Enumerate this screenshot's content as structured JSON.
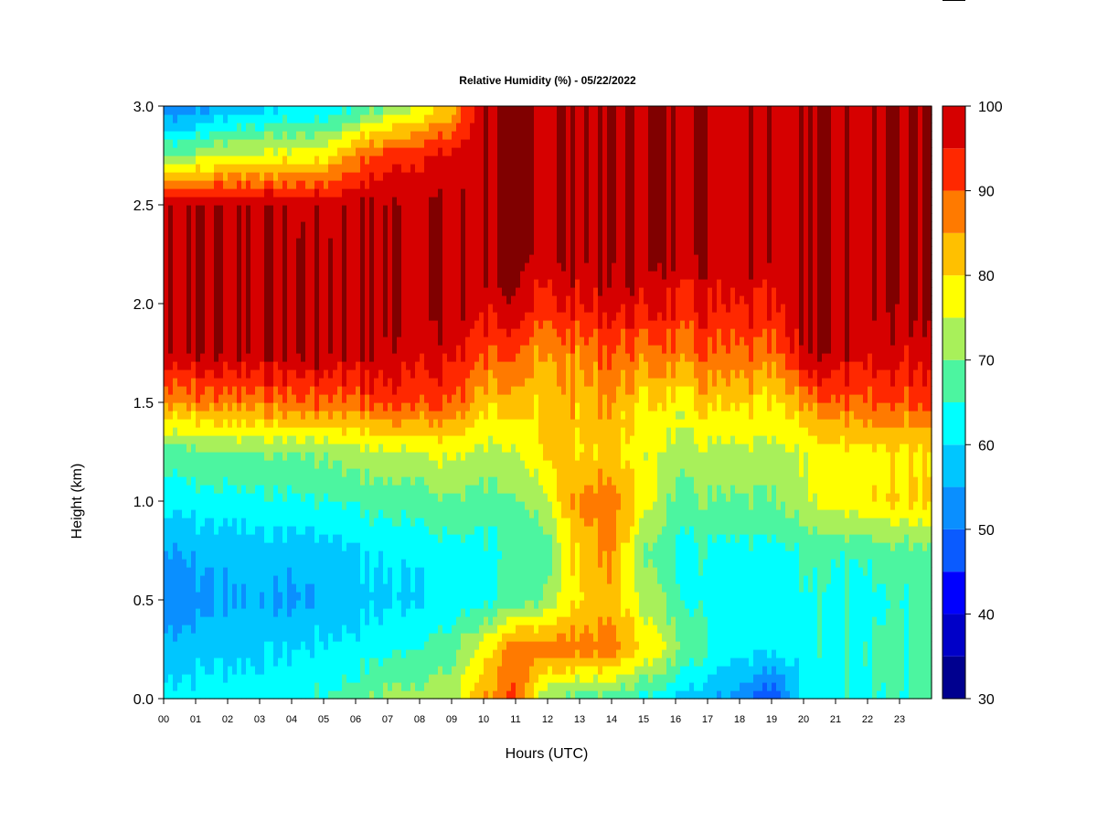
{
  "chart_data": {
    "type": "heatmap",
    "title": "Relative Humidity (%) - 05/22/2022",
    "xlabel": "Hours (UTC)",
    "ylabel": "Height (km)",
    "xlim": [
      0,
      24
    ],
    "ylim": [
      0.0,
      3.0
    ],
    "x_ticks": [
      "00",
      "01",
      "02",
      "03",
      "04",
      "05",
      "06",
      "07",
      "08",
      "09",
      "10",
      "11",
      "12",
      "13",
      "14",
      "15",
      "16",
      "17",
      "18",
      "19",
      "20",
      "21",
      "22",
      "23"
    ],
    "y_ticks": [
      "0.0",
      "0.5",
      "1.0",
      "1.5",
      "2.0",
      "2.5",
      "3.0"
    ],
    "colorbar": {
      "bounds": [
        30,
        35,
        40,
        45,
        50,
        55,
        60,
        65,
        70,
        75,
        80,
        85,
        90,
        95,
        100
      ],
      "colors": [
        "#00008f",
        "#0000c8",
        "#0000ff",
        "#0a5bff",
        "#0a8fff",
        "#00c6ff",
        "#00ffff",
        "#4cf5a0",
        "#a8f05a",
        "#ffff00",
        "#ffc000",
        "#ff7a00",
        "#ff2800",
        "#d60000",
        "#800000"
      ],
      "labels": [
        "30",
        "40",
        "50",
        "60",
        "70",
        "80",
        "90",
        "100"
      ]
    },
    "hours": [
      0,
      1,
      2,
      3,
      4,
      5,
      6,
      7,
      8,
      9,
      10,
      11,
      12,
      13,
      14,
      15,
      16,
      17,
      18,
      19,
      20,
      21,
      22,
      23,
      24
    ],
    "heights_km": [
      0.0,
      0.25,
      0.5,
      0.75,
      1.0,
      1.25,
      1.5,
      1.75,
      2.0,
      2.25,
      2.5,
      2.75,
      3.0
    ],
    "rh_profiles": [
      [
        62,
        57,
        52,
        55,
        62,
        68,
        86,
        100,
        100,
        100,
        100,
        70,
        50
      ],
      [
        62,
        58,
        53,
        56,
        63,
        69,
        87,
        100,
        100,
        100,
        100,
        72,
        52
      ],
      [
        63,
        59,
        55,
        57,
        63,
        70,
        88,
        100,
        100,
        100,
        100,
        76,
        56
      ],
      [
        63,
        59,
        56,
        58,
        64,
        70,
        88,
        100,
        100,
        100,
        100,
        76,
        58
      ],
      [
        64,
        60,
        54,
        57,
        64,
        70,
        89,
        100,
        100,
        100,
        99,
        77,
        60
      ],
      [
        65,
        61,
        56,
        58,
        65,
        71,
        89,
        100,
        100,
        100,
        99,
        78,
        60
      ],
      [
        68,
        62,
        58,
        60,
        66,
        73,
        90,
        99,
        100,
        100,
        100,
        88,
        64
      ],
      [
        72,
        64,
        59,
        61,
        67,
        74,
        92,
        99,
        100,
        100,
        100,
        92,
        70
      ],
      [
        72,
        66,
        60,
        62,
        68,
        75,
        92,
        98,
        100,
        100,
        100,
        95,
        75
      ],
      [
        73,
        68,
        61,
        63,
        69,
        76,
        90,
        96,
        100,
        100,
        100,
        96,
        82
      ],
      [
        85,
        78,
        64,
        64,
        68,
        74,
        83,
        91,
        98,
        100,
        100,
        100,
        100
      ],
      [
        90,
        88,
        66,
        64,
        68,
        73,
        80,
        88,
        97,
        100,
        100,
        100,
        100
      ],
      [
        70,
        88,
        72,
        68,
        75,
        82,
        83,
        86,
        94,
        100,
        100,
        100,
        100
      ],
      [
        68,
        88,
        80,
        82,
        87,
        80,
        83,
        87,
        96,
        100,
        100,
        100,
        100
      ],
      [
        67,
        87,
        83,
        86,
        88,
        81,
        85,
        89,
        97,
        100,
        100,
        100,
        100
      ],
      [
        64,
        80,
        74,
        70,
        78,
        76,
        80,
        88,
        97,
        100,
        100,
        100,
        100
      ],
      [
        60,
        72,
        67,
        65,
        68,
        73,
        78,
        88,
        95,
        100,
        100,
        100,
        100
      ],
      [
        56,
        65,
        63,
        64,
        70,
        74,
        82,
        90,
        96,
        100,
        100,
        100,
        100
      ],
      [
        54,
        62,
        62,
        64,
        70,
        74,
        82,
        90,
        96,
        100,
        100,
        100,
        100
      ],
      [
        46,
        62,
        62,
        64,
        70,
        74,
        80,
        89,
        96,
        100,
        100,
        100,
        100
      ],
      [
        60,
        63,
        64,
        66,
        74,
        75,
        85,
        99,
        100,
        100,
        100,
        100,
        100
      ],
      [
        64,
        65,
        64,
        66,
        78,
        78,
        90,
        100,
        100,
        100,
        100,
        100,
        100
      ],
      [
        65,
        66,
        64,
        67,
        80,
        79,
        91,
        98,
        100,
        100,
        100,
        100,
        100
      ],
      [
        65,
        66,
        65,
        68,
        80,
        79,
        90,
        97,
        100,
        100,
        100,
        100,
        100
      ],
      [
        65,
        66,
        65,
        68,
        80,
        79,
        90,
        96,
        100,
        100,
        100,
        100,
        100
      ]
    ]
  }
}
